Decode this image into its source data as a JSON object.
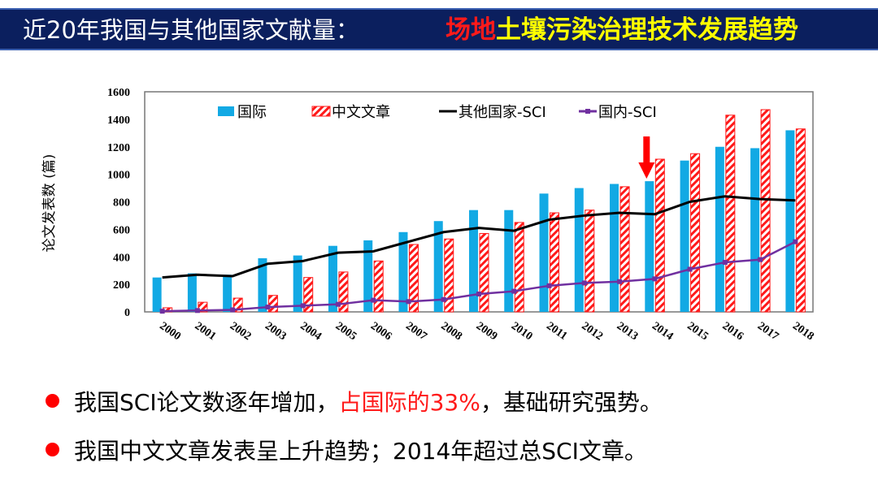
{
  "header": {
    "title_prefix": "近20年我国与其他国家文献量：",
    "title_red": "场地",
    "title_yellow": "土壤污染治理技术发展趋势"
  },
  "chart_data": {
    "type": "bar",
    "ylabel": "论文发表数 (篇)",
    "xlabel": "",
    "ylim": [
      0,
      1600
    ],
    "yticks": [
      0,
      200,
      400,
      600,
      800,
      1000,
      1200,
      1400,
      1600
    ],
    "grid": false,
    "legend_position": "top",
    "categories": [
      "2000",
      "2001",
      "2002",
      "2003",
      "2004",
      "2005",
      "2006",
      "2007",
      "2008",
      "2009",
      "2010",
      "2011",
      "2012",
      "2013",
      "2014",
      "2015",
      "2016",
      "2017",
      "2018"
    ],
    "series": [
      {
        "name": "国际",
        "kind": "bar",
        "color": "#12a9e4",
        "values": [
          250,
          280,
          270,
          390,
          410,
          480,
          520,
          580,
          660,
          740,
          740,
          860,
          900,
          930,
          950,
          1100,
          1200,
          1190,
          1320
        ]
      },
      {
        "name": "中文文章",
        "kind": "bar-hatched",
        "color": "#ff1a1a",
        "values": [
          30,
          70,
          100,
          120,
          250,
          290,
          370,
          490,
          530,
          570,
          650,
          720,
          740,
          910,
          1110,
          1150,
          1430,
          1470,
          1330
        ]
      },
      {
        "name": "其他国家-SCI",
        "kind": "line",
        "color": "#000000",
        "values": [
          250,
          270,
          260,
          350,
          370,
          430,
          440,
          510,
          580,
          610,
          590,
          670,
          700,
          720,
          710,
          800,
          840,
          820,
          810
        ]
      },
      {
        "name": "国内-SCI",
        "kind": "line-marker",
        "color": "#7030a0",
        "values": [
          5,
          10,
          15,
          35,
          45,
          55,
          85,
          75,
          90,
          130,
          150,
          190,
          210,
          220,
          240,
          310,
          360,
          380,
          510
        ]
      }
    ],
    "annotations": [
      {
        "type": "arrow-down",
        "category": "2014",
        "color": "#ff0000"
      }
    ]
  },
  "bullets": [
    {
      "text_before": "我国SCI论文数逐年增加，",
      "text_highlight": "占国际的33%",
      "text_after": "，基础研究强势。"
    },
    {
      "text_before": "我国中文文章发表呈上升趋势；2014年超过总SCI文章。",
      "text_highlight": "",
      "text_after": ""
    }
  ]
}
